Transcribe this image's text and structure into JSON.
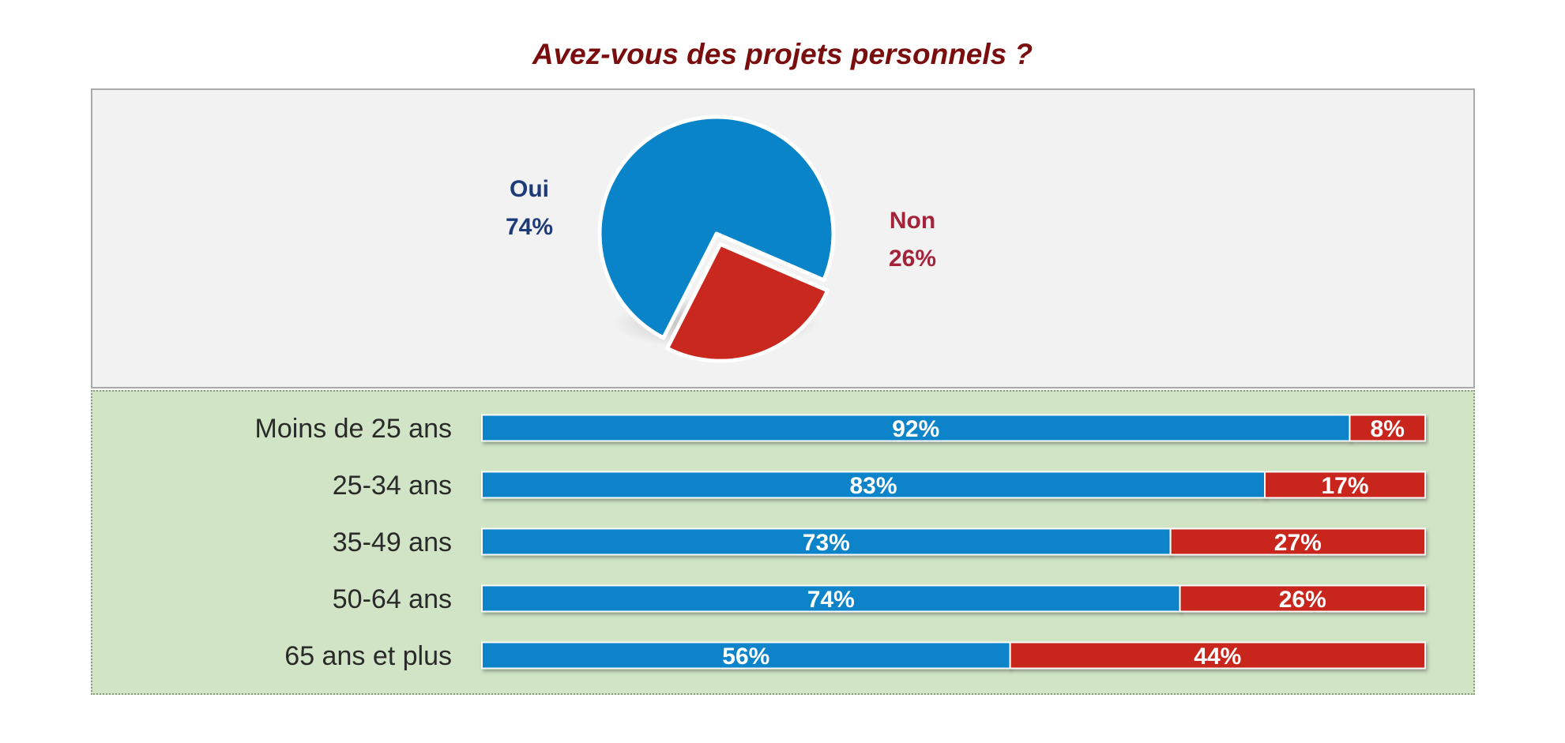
{
  "colors": {
    "oui": "#0a84c9",
    "non": "#c8281e",
    "title": "#7a0d0d",
    "oui_label": "#1d3b78",
    "non_label": "#a3243a"
  },
  "chart_data": [
    {
      "type": "pie",
      "title": "Avez-vous des projets personnels ?",
      "slices": [
        {
          "label": "Oui",
          "value": 74,
          "display": "74%"
        },
        {
          "label": "Non",
          "value": 26,
          "display": "26%"
        }
      ]
    },
    {
      "type": "bar",
      "stacked": true,
      "orientation": "horizontal",
      "categories": [
        "Moins de 25 ans",
        "25-34 ans",
        "35-49 ans",
        "50-64 ans",
        "65 ans et plus"
      ],
      "series": [
        {
          "values": [
            92,
            83,
            73,
            74,
            56
          ],
          "labels": [
            "92%",
            "83%",
            "73%",
            "74%",
            "56%"
          ]
        },
        {
          "values": [
            8,
            17,
            27,
            26,
            44
          ],
          "labels": [
            "8%",
            "17%",
            "27%",
            "26%",
            "44%"
          ]
        }
      ],
      "xlim": [
        0,
        100
      ]
    }
  ]
}
